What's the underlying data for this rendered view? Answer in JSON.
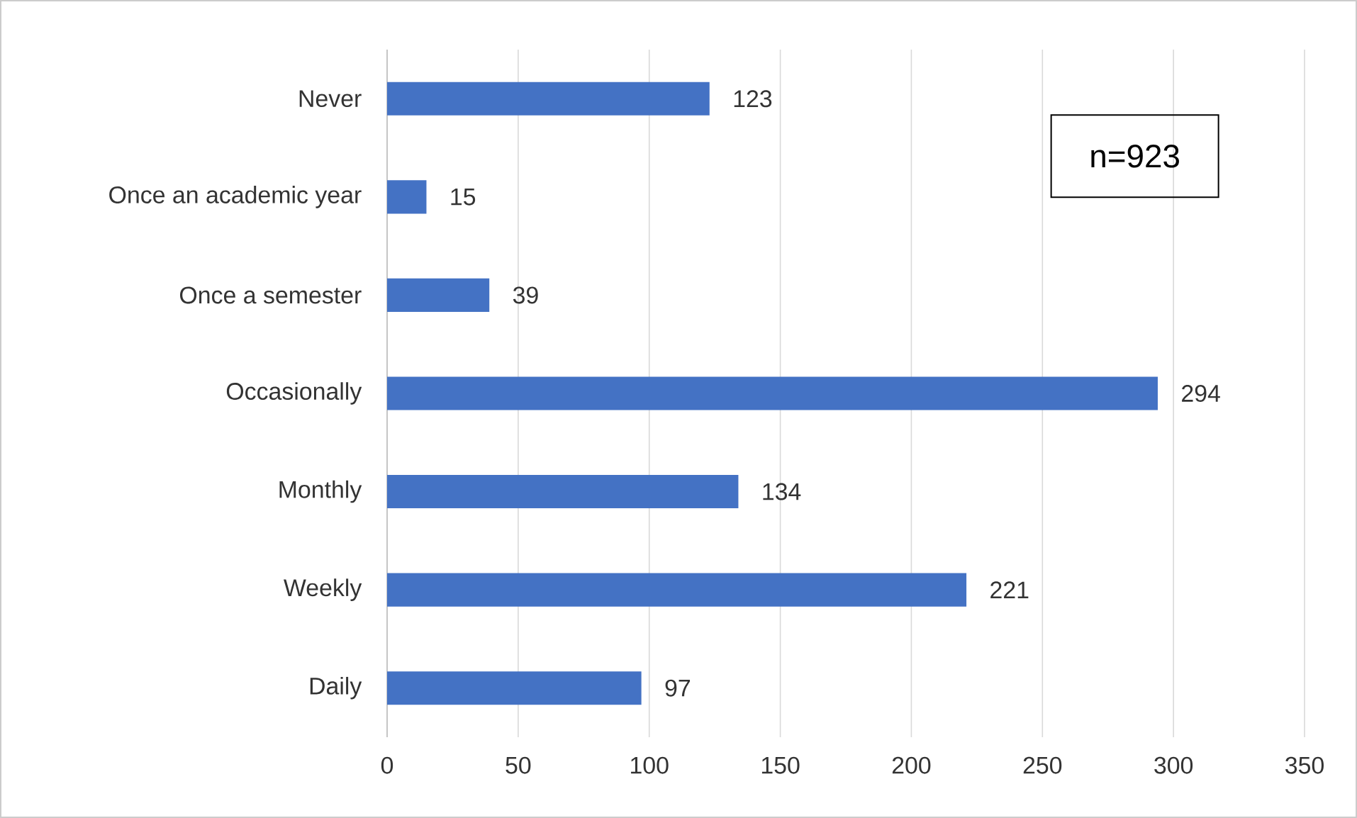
{
  "chart_data": {
    "type": "bar",
    "orientation": "horizontal",
    "categories": [
      "Never",
      "Once an academic year",
      "Once a semester",
      "Occasionally",
      "Monthly",
      "Weekly",
      "Daily"
    ],
    "values": [
      123,
      15,
      39,
      294,
      134,
      221,
      97
    ],
    "color": "#4472c4",
    "xlim": [
      0,
      350
    ],
    "xticks": [
      0,
      50,
      100,
      150,
      200,
      250,
      300,
      350
    ],
    "grid": "x",
    "data_labels": true,
    "annotations": [
      "n=923"
    ]
  }
}
